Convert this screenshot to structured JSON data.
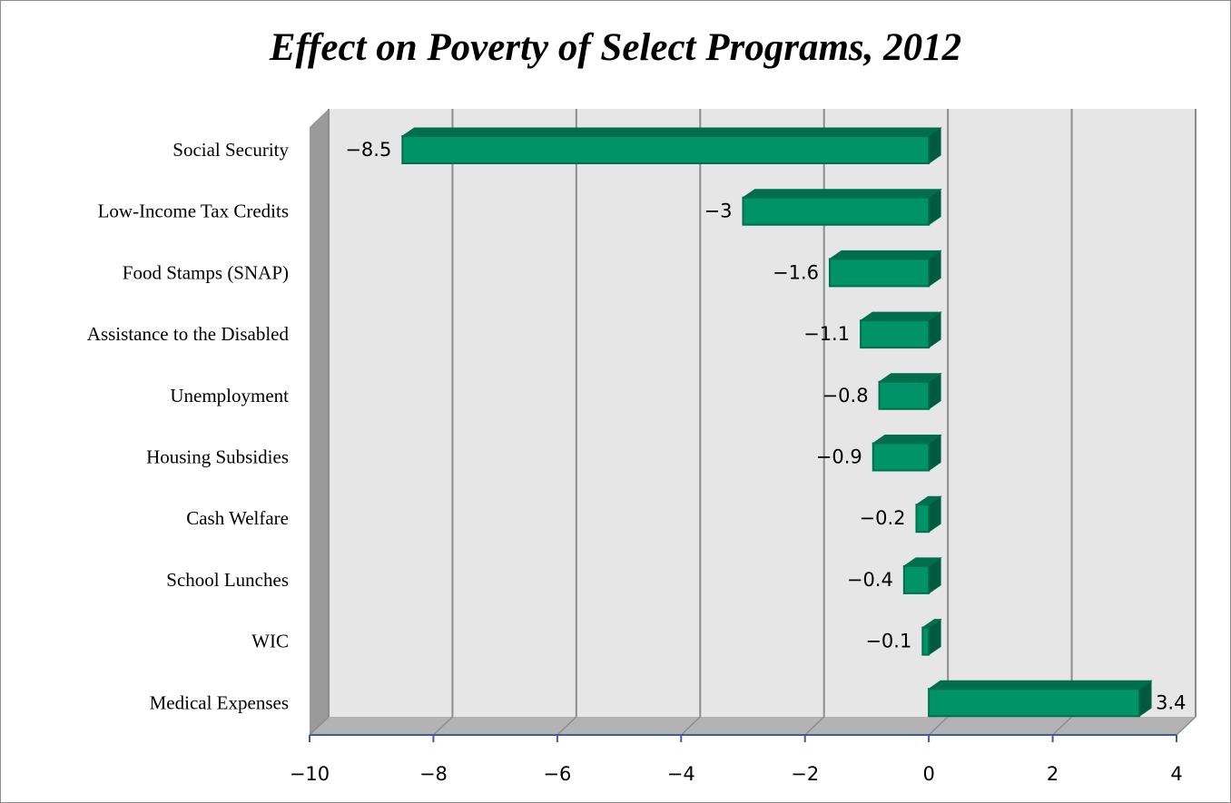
{
  "chart_data": {
    "type": "bar",
    "orientation": "horizontal",
    "style": "3d",
    "title": "Effect on Poverty of Select Programs, 2012",
    "categories": [
      "Social Security",
      "Low-Income Tax Credits",
      "Food Stamps (SNAP)",
      "Assistance to the Disabled",
      "Unemployment",
      "Housing Subsidies",
      "Cash Welfare",
      "School Lunches",
      "WIC",
      "Medical Expenses"
    ],
    "values": [
      -8.5,
      -3,
      -1.6,
      -1.1,
      -0.8,
      -0.9,
      -0.2,
      -0.4,
      -0.1,
      3.4
    ],
    "data_labels": [
      "−8.5",
      "−3",
      "−1.6",
      "−1.1",
      "−0.8",
      "−0.9",
      "−0.2",
      "−0.4",
      "−0.1",
      "3.4"
    ],
    "xlim": [
      -10,
      4
    ],
    "xticks": [
      -10,
      -8,
      -6,
      -4,
      -2,
      0,
      2,
      4
    ],
    "xtick_labels": [
      "−10",
      "−8",
      "−6",
      "−4",
      "−2",
      "0",
      "2",
      "4"
    ],
    "xlabel": "",
    "ylabel": "",
    "grid": true,
    "legend": "none",
    "colors": {
      "bar": "#009367",
      "bar_top": "#006e4c",
      "bar_side": "#005a3e",
      "bar_edge": "#00704c",
      "plot_back": "#e6e6e6",
      "plot_side": "#9a9a9a",
      "plot_floor": "#b3b3b3",
      "grid": "#8c8c8c",
      "axis": "#3c5d9a"
    }
  }
}
